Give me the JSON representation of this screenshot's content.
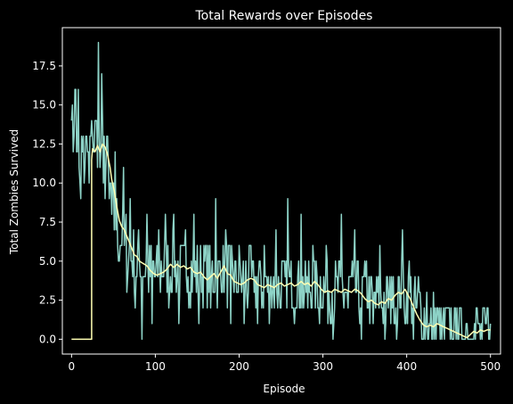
{
  "chart_data": {
    "type": "line",
    "title": "Total Rewards over Episodes",
    "xlabel": "Episode",
    "ylabel": "Total Zombies Survived",
    "xlim": [
      -11,
      512
    ],
    "ylim": [
      -0.95,
      19.95
    ],
    "xticks": [
      0,
      100,
      200,
      300,
      400,
      500
    ],
    "yticks": [
      0.0,
      2.5,
      5.0,
      7.5,
      10.0,
      12.5,
      15.0,
      17.5
    ],
    "xtick_labels": [
      "0",
      "100",
      "200",
      "300",
      "400",
      "500"
    ],
    "ytick_labels": [
      "0.0",
      "2.5",
      "5.0",
      "7.5",
      "10.0",
      "12.5",
      "15.0",
      "17.5"
    ],
    "grid": false,
    "background": "#000000",
    "series": [
      {
        "role": "raw",
        "color": "#8dd3c7",
        "anchors": [
          [
            0,
            15
          ],
          [
            5,
            13
          ],
          [
            10,
            12
          ],
          [
            15,
            11
          ],
          [
            20,
            12
          ],
          [
            25,
            13
          ],
          [
            30,
            13
          ],
          [
            35,
            12
          ],
          [
            40,
            11
          ],
          [
            45,
            10
          ],
          [
            50,
            8
          ],
          [
            55,
            7
          ],
          [
            60,
            6.5
          ],
          [
            65,
            6
          ],
          [
            70,
            5.5
          ],
          [
            75,
            5
          ],
          [
            80,
            5
          ],
          [
            90,
            4.5
          ],
          [
            100,
            4.2
          ],
          [
            110,
            4.3
          ],
          [
            120,
            4.6
          ],
          [
            130,
            4.7
          ],
          [
            140,
            4.5
          ],
          [
            150,
            4.3
          ],
          [
            160,
            4
          ],
          [
            170,
            4.1
          ],
          [
            180,
            4.4
          ],
          [
            190,
            4
          ],
          [
            200,
            3.7
          ],
          [
            210,
            3.6
          ],
          [
            220,
            3.8
          ],
          [
            230,
            3.5
          ],
          [
            240,
            3.4
          ],
          [
            250,
            3.5
          ],
          [
            260,
            3.6
          ],
          [
            270,
            3.5
          ],
          [
            280,
            3.5
          ],
          [
            290,
            3.6
          ],
          [
            300,
            3.2
          ],
          [
            310,
            3.0
          ],
          [
            320,
            3.1
          ],
          [
            330,
            3.0
          ],
          [
            340,
            3.1
          ],
          [
            350,
            2.9
          ],
          [
            360,
            2.6
          ],
          [
            370,
            2.4
          ],
          [
            380,
            2.6
          ],
          [
            390,
            2.9
          ],
          [
            400,
            2.9
          ],
          [
            410,
            2.2
          ],
          [
            420,
            1.2
          ],
          [
            430,
            0.9
          ],
          [
            440,
            0.8
          ],
          [
            450,
            0.7
          ],
          [
            460,
            0.5
          ],
          [
            470,
            0.3
          ],
          [
            480,
            0.4
          ],
          [
            490,
            0.5
          ],
          [
            500,
            0.6
          ]
        ],
        "spikes": [
          [
            0,
            14
          ],
          [
            1,
            15
          ],
          [
            3,
            13
          ],
          [
            5,
            16
          ],
          [
            7,
            12
          ],
          [
            8,
            16
          ],
          [
            10,
            10
          ],
          [
            11,
            9
          ],
          [
            14,
            13
          ],
          [
            16,
            11
          ],
          [
            19,
            12
          ],
          [
            21,
            10
          ],
          [
            25,
            13
          ],
          [
            29,
            14
          ],
          [
            32,
            19
          ],
          [
            34,
            11
          ],
          [
            36,
            17
          ],
          [
            38,
            10
          ],
          [
            42,
            13
          ],
          [
            45,
            9
          ],
          [
            48,
            8
          ],
          [
            52,
            12
          ],
          [
            56,
            5
          ],
          [
            62,
            11
          ],
          [
            66,
            3
          ],
          [
            70,
            9
          ],
          [
            76,
            2
          ],
          [
            84,
            0
          ],
          [
            90,
            8
          ],
          [
            96,
            1
          ],
          [
            104,
            7
          ],
          [
            112,
            8
          ],
          [
            116,
            2
          ],
          [
            122,
            8
          ],
          [
            128,
            1
          ],
          [
            136,
            7
          ],
          [
            140,
            2
          ],
          [
            146,
            8
          ],
          [
            152,
            1
          ],
          [
            160,
            6
          ],
          [
            166,
            2
          ],
          [
            172,
            9
          ],
          [
            184,
            7
          ],
          [
            190,
            1
          ],
          [
            200,
            6
          ],
          [
            206,
            1
          ],
          [
            214,
            6
          ],
          [
            222,
            1
          ],
          [
            230,
            6
          ],
          [
            236,
            1
          ],
          [
            244,
            7
          ],
          [
            250,
            2
          ],
          [
            258,
            9
          ],
          [
            266,
            1
          ],
          [
            274,
            8
          ],
          [
            282,
            2
          ],
          [
            288,
            6
          ],
          [
            296,
            1
          ],
          [
            304,
            6
          ],
          [
            312,
            0
          ],
          [
            322,
            8
          ],
          [
            330,
            2
          ],
          [
            338,
            7
          ],
          [
            346,
            0
          ],
          [
            352,
            5
          ],
          [
            360,
            1
          ],
          [
            368,
            6
          ],
          [
            374,
            0
          ],
          [
            382,
            4
          ],
          [
            388,
            0
          ],
          [
            395,
            7
          ],
          [
            398,
            1
          ],
          [
            403,
            5
          ],
          [
            408,
            0
          ],
          [
            414,
            4
          ],
          [
            418,
            0
          ],
          [
            424,
            3
          ],
          [
            430,
            0
          ],
          [
            436,
            2
          ],
          [
            442,
            0
          ],
          [
            448,
            2
          ],
          [
            454,
            0
          ],
          [
            460,
            2
          ],
          [
            466,
            0
          ],
          [
            472,
            1
          ],
          [
            478,
            0
          ],
          [
            484,
            2
          ],
          [
            490,
            0
          ],
          [
            496,
            2
          ],
          [
            500,
            1
          ]
        ]
      },
      {
        "role": "moving-average",
        "color": "#ffffb3",
        "points": [
          [
            0,
            0
          ],
          [
            24,
            0
          ],
          [
            24,
            11.5
          ],
          [
            25,
            12.2
          ],
          [
            28,
            12.0
          ],
          [
            31,
            12.4
          ],
          [
            34,
            12.0
          ],
          [
            37,
            12.5
          ],
          [
            40,
            12.3
          ],
          [
            43,
            11.8
          ],
          [
            46,
            11.0
          ],
          [
            48,
            10.2
          ],
          [
            51,
            9.5
          ],
          [
            54,
            8.5
          ],
          [
            57,
            7.6
          ],
          [
            60,
            7.2
          ],
          [
            63,
            7.0
          ],
          [
            66,
            6.6
          ],
          [
            69,
            6.2
          ],
          [
            72,
            5.8
          ],
          [
            75,
            5.4
          ],
          [
            78,
            5.3
          ],
          [
            81,
            5.0
          ],
          [
            84,
            4.9
          ],
          [
            87,
            4.8
          ],
          [
            90,
            4.7
          ],
          [
            94,
            4.4
          ],
          [
            98,
            4.2
          ],
          [
            102,
            4.1
          ],
          [
            106,
            4.2
          ],
          [
            110,
            4.3
          ],
          [
            114,
            4.5
          ],
          [
            118,
            4.8
          ],
          [
            122,
            4.6
          ],
          [
            126,
            4.8
          ],
          [
            130,
            4.6
          ],
          [
            134,
            4.7
          ],
          [
            138,
            4.5
          ],
          [
            142,
            4.6
          ],
          [
            146,
            4.3
          ],
          [
            150,
            4.2
          ],
          [
            154,
            4.3
          ],
          [
            158,
            4.0
          ],
          [
            162,
            3.8
          ],
          [
            166,
            4.0
          ],
          [
            170,
            4.2
          ],
          [
            174,
            3.9
          ],
          [
            178,
            4.3
          ],
          [
            182,
            4.7
          ],
          [
            186,
            4.2
          ],
          [
            190,
            4.1
          ],
          [
            194,
            3.7
          ],
          [
            198,
            3.6
          ],
          [
            202,
            3.5
          ],
          [
            206,
            3.6
          ],
          [
            210,
            3.8
          ],
          [
            214,
            3.9
          ],
          [
            218,
            3.8
          ],
          [
            222,
            3.5
          ],
          [
            226,
            3.4
          ],
          [
            230,
            3.3
          ],
          [
            234,
            3.5
          ],
          [
            238,
            3.4
          ],
          [
            242,
            3.3
          ],
          [
            246,
            3.5
          ],
          [
            250,
            3.6
          ],
          [
            254,
            3.4
          ],
          [
            258,
            3.5
          ],
          [
            262,
            3.6
          ],
          [
            266,
            3.4
          ],
          [
            270,
            3.5
          ],
          [
            274,
            3.7
          ],
          [
            278,
            3.5
          ],
          [
            282,
            3.6
          ],
          [
            286,
            3.4
          ],
          [
            290,
            3.7
          ],
          [
            294,
            3.5
          ],
          [
            298,
            3.2
          ],
          [
            302,
            3.0
          ],
          [
            306,
            3.1
          ],
          [
            310,
            3.0
          ],
          [
            314,
            3.2
          ],
          [
            318,
            3.1
          ],
          [
            322,
            3.0
          ],
          [
            326,
            3.2
          ],
          [
            330,
            3.1
          ],
          [
            334,
            3.0
          ],
          [
            338,
            3.2
          ],
          [
            342,
            3.1
          ],
          [
            346,
            2.9
          ],
          [
            350,
            2.6
          ],
          [
            354,
            2.4
          ],
          [
            358,
            2.5
          ],
          [
            362,
            2.3
          ],
          [
            366,
            2.2
          ],
          [
            370,
            2.4
          ],
          [
            374,
            2.3
          ],
          [
            378,
            2.6
          ],
          [
            382,
            2.5
          ],
          [
            386,
            2.8
          ],
          [
            390,
            3.0
          ],
          [
            394,
            2.9
          ],
          [
            398,
            3.2
          ],
          [
            400,
            3.0
          ],
          [
            404,
            2.6
          ],
          [
            408,
            2.1
          ],
          [
            412,
            1.6
          ],
          [
            416,
            1.2
          ],
          [
            420,
            0.9
          ],
          [
            424,
            0.8
          ],
          [
            428,
            0.9
          ],
          [
            432,
            0.8
          ],
          [
            436,
            1.0
          ],
          [
            440,
            0.9
          ],
          [
            444,
            0.8
          ],
          [
            448,
            0.7
          ],
          [
            452,
            0.6
          ],
          [
            456,
            0.5
          ],
          [
            460,
            0.4
          ],
          [
            464,
            0.3
          ],
          [
            468,
            0.2
          ],
          [
            472,
            0.1
          ],
          [
            476,
            0.3
          ],
          [
            480,
            0.5
          ],
          [
            484,
            0.4
          ],
          [
            488,
            0.6
          ],
          [
            492,
            0.5
          ],
          [
            496,
            0.6
          ],
          [
            500,
            0.6
          ]
        ]
      }
    ]
  }
}
